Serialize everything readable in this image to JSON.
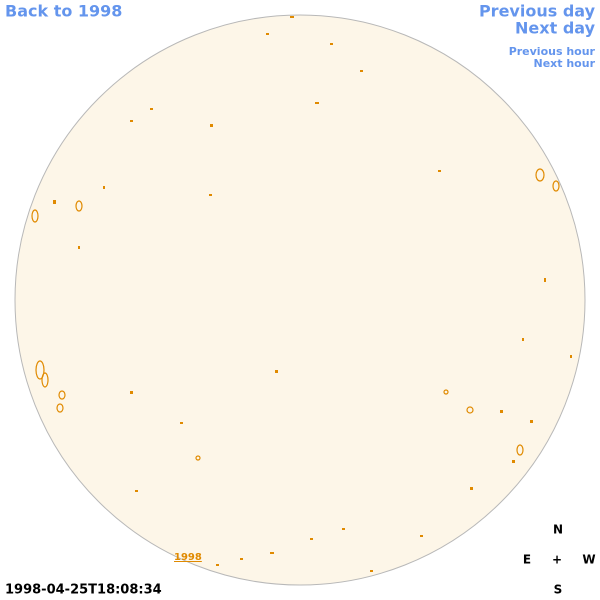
{
  "nav": {
    "back": "Back to 1998",
    "previous_day": "Previous day",
    "next_day": "Next day",
    "previous_hour": "Previous hour",
    "next_hour": "Next hour"
  },
  "timestamp": "1998-04-25T18:08:34",
  "disk_label": "1998",
  "compass": {
    "north": "N",
    "east": "E",
    "center": "+",
    "west": "W",
    "south": "S"
  }
}
